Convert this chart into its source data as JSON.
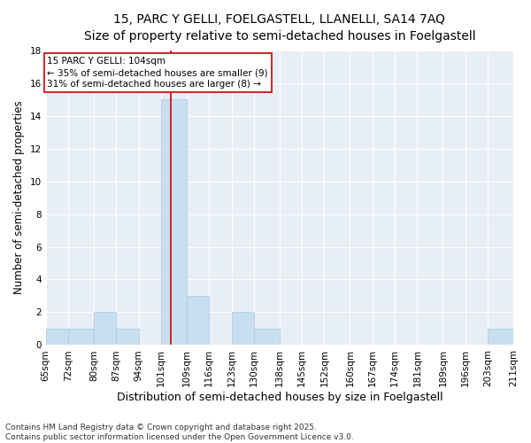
{
  "title": "15, PARC Y GELLI, FOELGASTELL, LLANELLI, SA14 7AQ",
  "subtitle": "Size of property relative to semi-detached houses in Foelgastell",
  "xlabel": "Distribution of semi-detached houses by size in Foelgastell",
  "ylabel": "Number of semi-detached properties",
  "bins": [
    65,
    72,
    80,
    87,
    94,
    101,
    109,
    116,
    123,
    130,
    138,
    145,
    152,
    160,
    167,
    174,
    181,
    189,
    196,
    203,
    211
  ],
  "bin_labels": [
    "65sqm",
    "72sqm",
    "80sqm",
    "87sqm",
    "94sqm",
    "101sqm",
    "109sqm",
    "116sqm",
    "123sqm",
    "130sqm",
    "138sqm",
    "145sqm",
    "152sqm",
    "160sqm",
    "167sqm",
    "174sqm",
    "181sqm",
    "189sqm",
    "196sqm",
    "203sqm",
    "211sqm"
  ],
  "counts": [
    1,
    1,
    2,
    1,
    0,
    15,
    3,
    0,
    2,
    1,
    0,
    0,
    0,
    0,
    0,
    0,
    0,
    0,
    0,
    1
  ],
  "bar_color": "#c8dff0",
  "bar_edge_color": "#a8c8e0",
  "highlight_line_value": 104,
  "highlight_line_color": "#cc0000",
  "annotation_box_text": "15 PARC Y GELLI: 104sqm\n← 35% of semi-detached houses are smaller (9)\n31% of semi-detached houses are larger (8) →",
  "annotation_box_color": "#ffffff",
  "annotation_box_edge_color": "#cc0000",
  "ylim": [
    0,
    18
  ],
  "yticks": [
    0,
    2,
    4,
    6,
    8,
    10,
    12,
    14,
    16,
    18
  ],
  "bg_color": "#e8eef5",
  "footnote": "Contains HM Land Registry data © Crown copyright and database right 2025.\nContains public sector information licensed under the Open Government Licence v3.0.",
  "title_fontsize": 10,
  "subtitle_fontsize": 9,
  "xlabel_fontsize": 9,
  "ylabel_fontsize": 8.5,
  "annotation_fontsize": 7.5,
  "tick_fontsize": 7.5,
  "footnote_fontsize": 6.5
}
